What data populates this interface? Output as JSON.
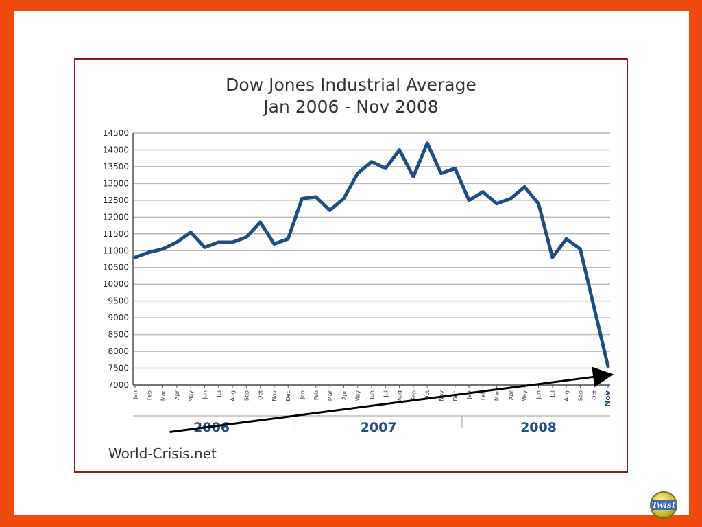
{
  "slide": {
    "source_label": "World-Crisis.net",
    "badge_label": "Twist"
  },
  "colors": {
    "frame": "#f04a0c",
    "line": "#1f4e82",
    "grid": "#bbbbbb",
    "axis": "#555555",
    "year_label": "#1f4e82",
    "arrow": "#000000"
  },
  "chart_data": {
    "type": "line",
    "title": "Dow Jones Industrial Average",
    "subtitle": "Jan 2006 - Nov 2008",
    "xlabel": "",
    "ylabel": "",
    "ylim": [
      7000,
      14500
    ],
    "yticks": [
      14500,
      14000,
      13500,
      13000,
      12500,
      12000,
      11500,
      11000,
      10500,
      10000,
      9500,
      9000,
      8500,
      8000,
      7500,
      7000
    ],
    "grid": true,
    "categories": [
      "Jan",
      "Feb",
      "Mar",
      "Apr",
      "May",
      "Jun",
      "Jul",
      "Aug",
      "Sep",
      "Oct",
      "Nov",
      "Dec",
      "Jan",
      "Feb",
      "Mar",
      "Apr",
      "May",
      "Jun",
      "Jul",
      "Aug",
      "Sep",
      "Oct",
      "Nov",
      "Dec",
      "Jan",
      "Feb",
      "Mar",
      "Apr",
      "May",
      "Jun",
      "Jul",
      "Aug",
      "Sep",
      "Oct",
      "Nov"
    ],
    "years": [
      {
        "label": "2006",
        "start": 0,
        "end": 11
      },
      {
        "label": "2007",
        "start": 12,
        "end": 23
      },
      {
        "label": "2008",
        "start": 24,
        "end": 34
      }
    ],
    "series": [
      {
        "name": "Dow Jones Industrial Average",
        "values": [
          10800,
          10950,
          11050,
          11250,
          11550,
          11100,
          11250,
          11250,
          11400,
          11850,
          11200,
          11350,
          12550,
          12600,
          12200,
          12550,
          13300,
          13650,
          13450,
          14000,
          13200,
          14200,
          13300,
          13450,
          12500,
          12750,
          12400,
          12550,
          12900,
          12400,
          10800,
          11350,
          11050,
          9300,
          7550
        ]
      }
    ],
    "annotations": [
      {
        "type": "arrow",
        "from": {
          "index": 2,
          "value": 5600
        },
        "to": {
          "index": 34,
          "value": 7300
        }
      }
    ]
  }
}
